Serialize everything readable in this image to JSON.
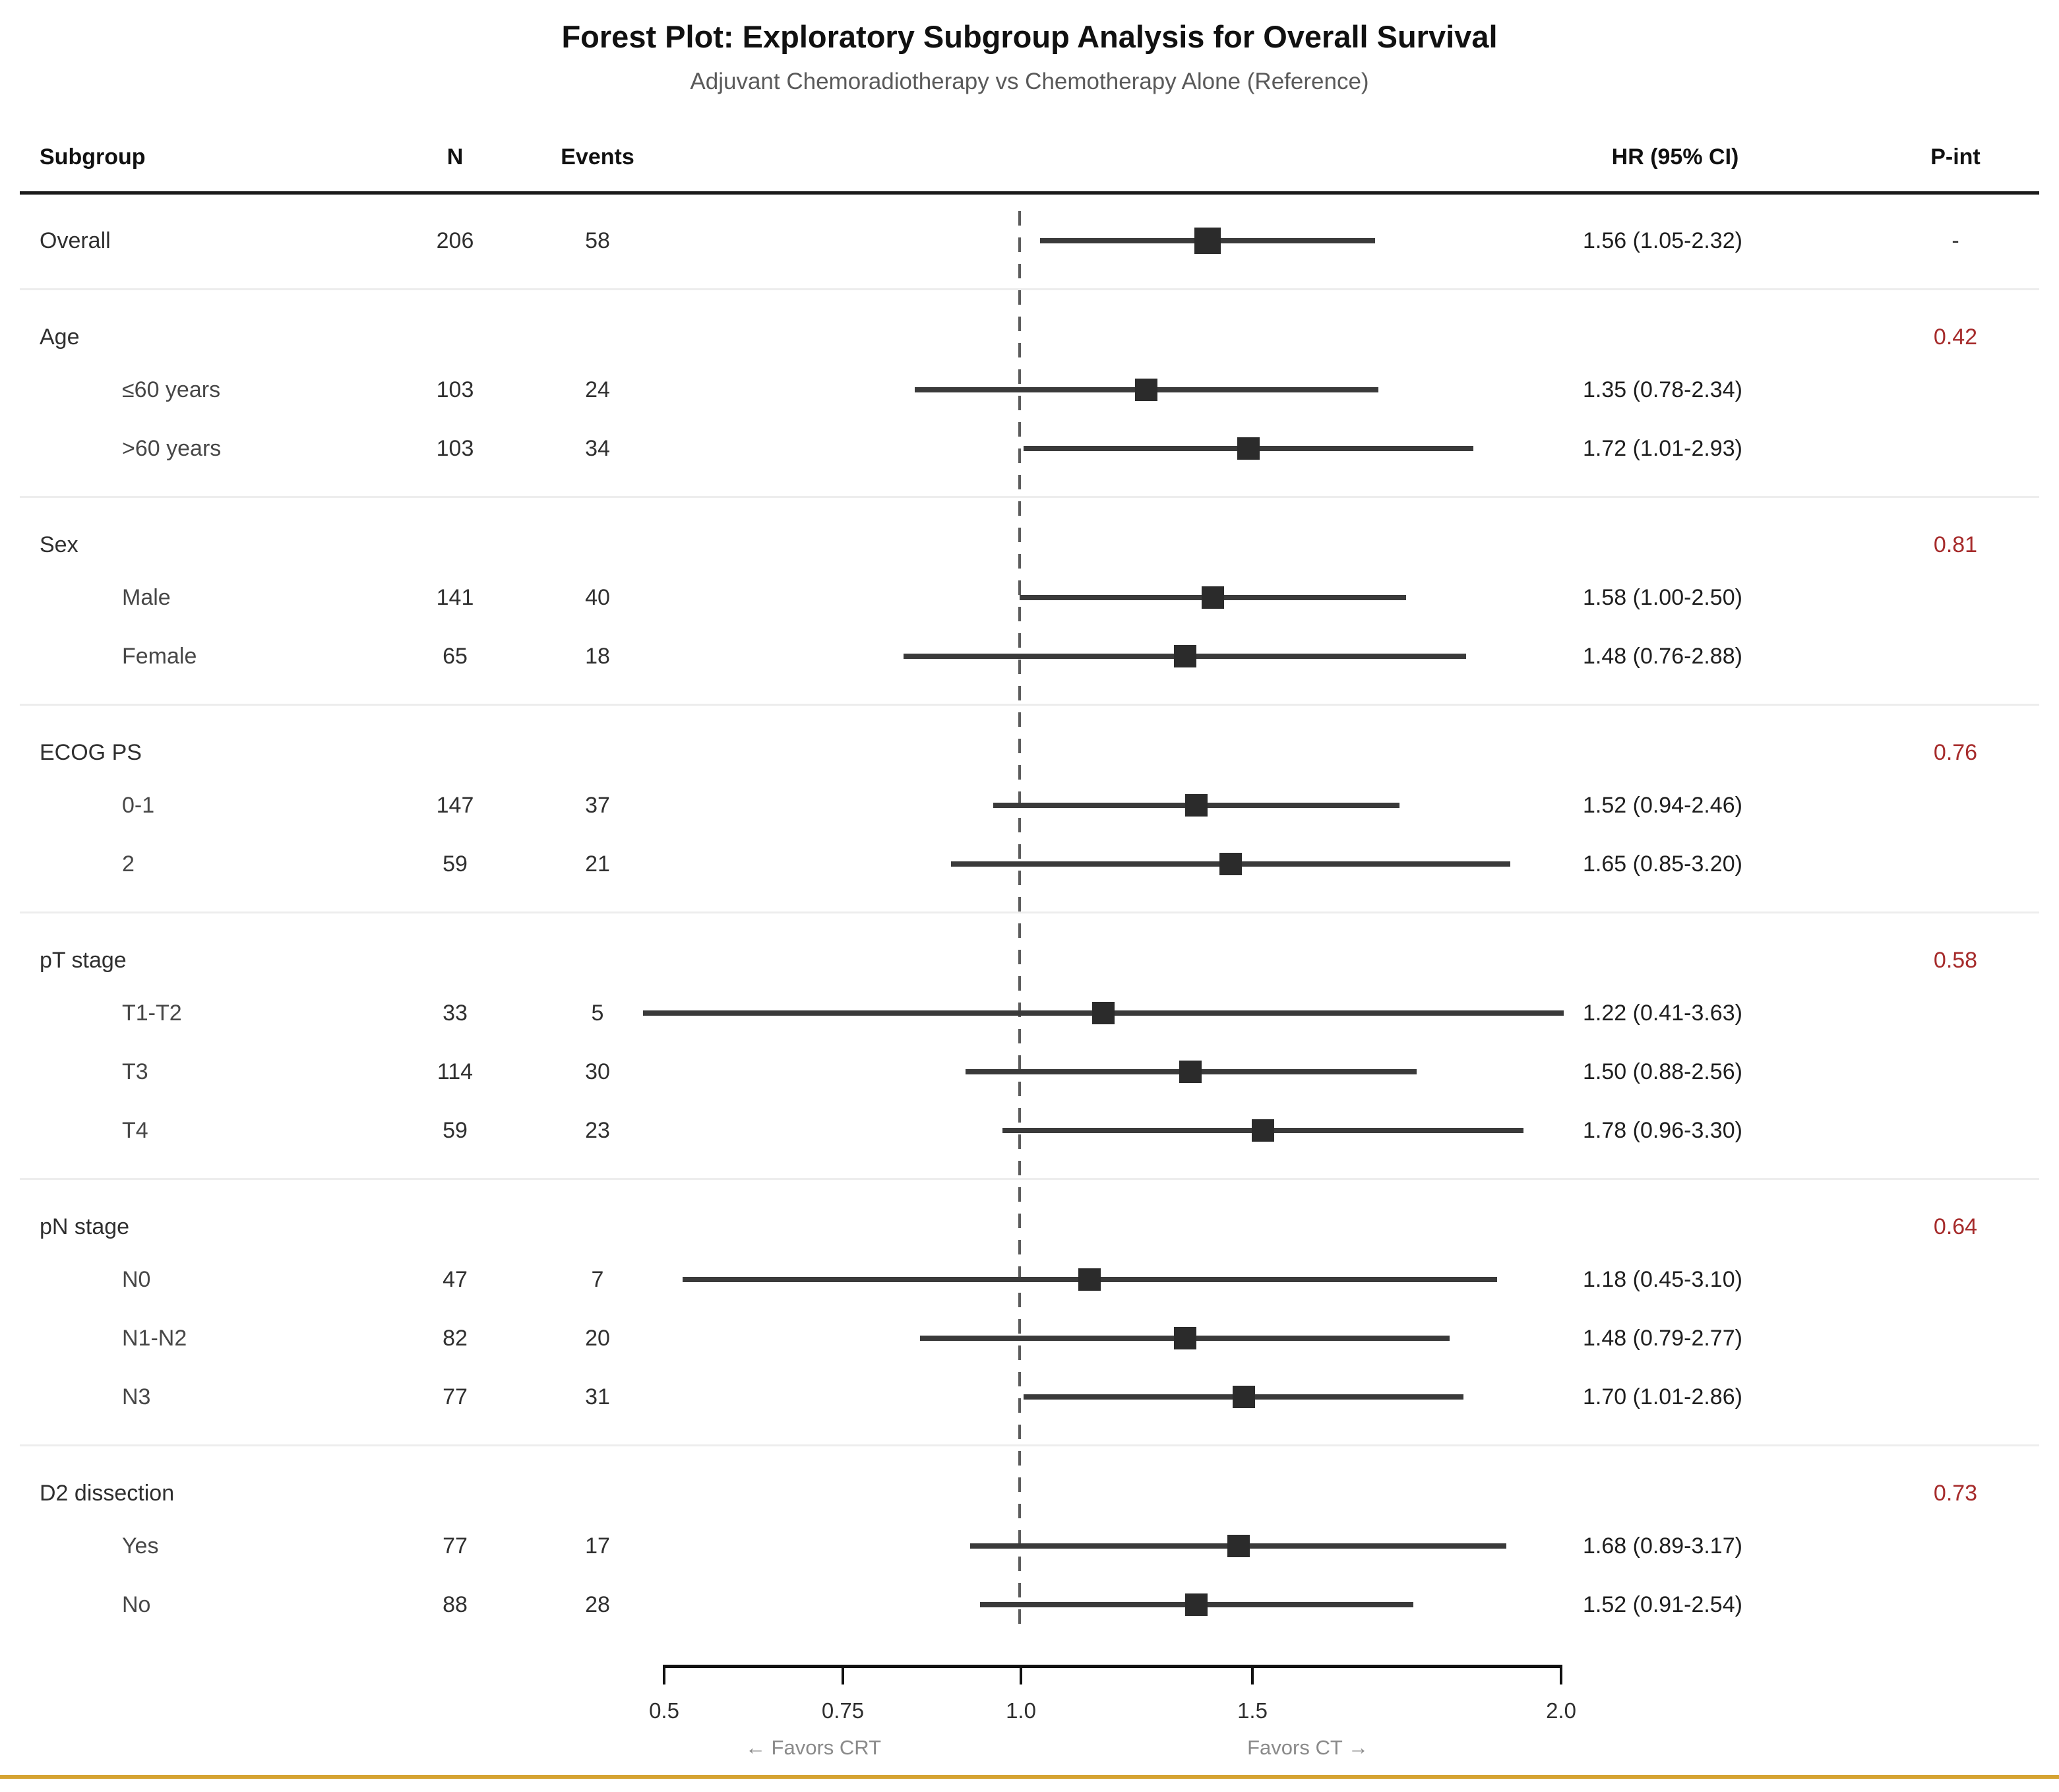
{
  "title": "Forest Plot: Exploratory Subgroup Analysis for Overall Survival",
  "subtitle": "Adjuvant Chemoradiotherapy vs Chemotherapy Alone (Reference)",
  "columns": {
    "subgroup": "Subgroup",
    "n": "N",
    "events": "Events",
    "hr": "HR (95% CI)",
    "pint": "P-int"
  },
  "axis": {
    "tick_labels": [
      "0.5",
      "0.75",
      "1.0",
      "1.5",
      "2.0"
    ],
    "favors_left": "← Favors CRT",
    "favors_right": "Favors CT →"
  },
  "colors": {
    "pint_red": "#a62b2b",
    "pint_neutral": "#333333",
    "marker": "#2b2b2b",
    "ci_line": "#3a3a3a",
    "gold_rule": "#d5a332"
  },
  "chart_data": {
    "type": "forest",
    "x_ticks": [
      0.5,
      0.75,
      1.0,
      1.5,
      2.0
    ],
    "x_scale": "log",
    "reference_line": 1.0,
    "rows": [
      {
        "kind": "overall",
        "label": "Overall",
        "n": "206",
        "events": "58",
        "hr": 1.56,
        "lo": 1.05,
        "hi": 2.32,
        "hr_text": "1.56 (1.05-2.32)",
        "pint": "-"
      },
      {
        "kind": "group",
        "label": "Age",
        "pint": "0.42"
      },
      {
        "kind": "item",
        "label": "≤60 years",
        "n": "103",
        "events": "24",
        "hr": 1.35,
        "lo": 0.78,
        "hi": 2.34,
        "hr_text": "1.35 (0.78-2.34)"
      },
      {
        "kind": "item",
        "label": ">60 years",
        "n": "103",
        "events": "34",
        "hr": 1.72,
        "lo": 1.01,
        "hi": 2.93,
        "hr_text": "1.72 (1.01-2.93)"
      },
      {
        "kind": "group",
        "label": "Sex",
        "pint": "0.81"
      },
      {
        "kind": "item",
        "label": "Male",
        "n": "141",
        "events": "40",
        "hr": 1.58,
        "lo": 1.0,
        "hi": 2.5,
        "hr_text": "1.58 (1.00-2.50)"
      },
      {
        "kind": "item",
        "label": "Female",
        "n": "65",
        "events": "18",
        "hr": 1.48,
        "lo": 0.76,
        "hi": 2.88,
        "hr_text": "1.48 (0.76-2.88)"
      },
      {
        "kind": "group",
        "label": "ECOG PS",
        "pint": "0.76"
      },
      {
        "kind": "item",
        "label": "0-1",
        "n": "147",
        "events": "37",
        "hr": 1.52,
        "lo": 0.94,
        "hi": 2.46,
        "hr_text": "1.52 (0.94-2.46)"
      },
      {
        "kind": "item",
        "label": "2",
        "n": "59",
        "events": "21",
        "hr": 1.65,
        "lo": 0.85,
        "hi": 3.2,
        "hr_text": "1.65 (0.85-3.20)"
      },
      {
        "kind": "group",
        "label": "pT stage",
        "pint": "0.58"
      },
      {
        "kind": "item",
        "label": "T1-T2",
        "n": "33",
        "events": "5",
        "hr": 1.22,
        "lo": 0.41,
        "hi": 3.63,
        "hr_text": "1.22 (0.41-3.63)"
      },
      {
        "kind": "item",
        "label": "T3",
        "n": "114",
        "events": "30",
        "hr": 1.5,
        "lo": 0.88,
        "hi": 2.56,
        "hr_text": "1.50 (0.88-2.56)"
      },
      {
        "kind": "item",
        "label": "T4",
        "n": "59",
        "events": "23",
        "hr": 1.78,
        "lo": 0.96,
        "hi": 3.3,
        "hr_text": "1.78 (0.96-3.30)"
      },
      {
        "kind": "group",
        "label": "pN stage",
        "pint": "0.64"
      },
      {
        "kind": "item",
        "label": "N0",
        "n": "47",
        "events": "7",
        "hr": 1.18,
        "lo": 0.45,
        "hi": 3.1,
        "hr_text": "1.18 (0.45-3.10)"
      },
      {
        "kind": "item",
        "label": "N1-N2",
        "n": "82",
        "events": "20",
        "hr": 1.48,
        "lo": 0.79,
        "hi": 2.77,
        "hr_text": "1.48 (0.79-2.77)"
      },
      {
        "kind": "item",
        "label": "N3",
        "n": "77",
        "events": "31",
        "hr": 1.7,
        "lo": 1.01,
        "hi": 2.86,
        "hr_text": "1.70 (1.01-2.86)"
      },
      {
        "kind": "group",
        "label": "D2 dissection",
        "pint": "0.73"
      },
      {
        "kind": "item",
        "label": "Yes",
        "n": "77",
        "events": "17",
        "hr": 1.68,
        "lo": 0.89,
        "hi": 3.17,
        "hr_text": "1.68 (0.89-3.17)"
      },
      {
        "kind": "item",
        "label": "No",
        "n": "88",
        "events": "28",
        "hr": 1.52,
        "lo": 0.91,
        "hi": 2.54,
        "hr_text": "1.52 (0.91-2.54)"
      }
    ]
  }
}
